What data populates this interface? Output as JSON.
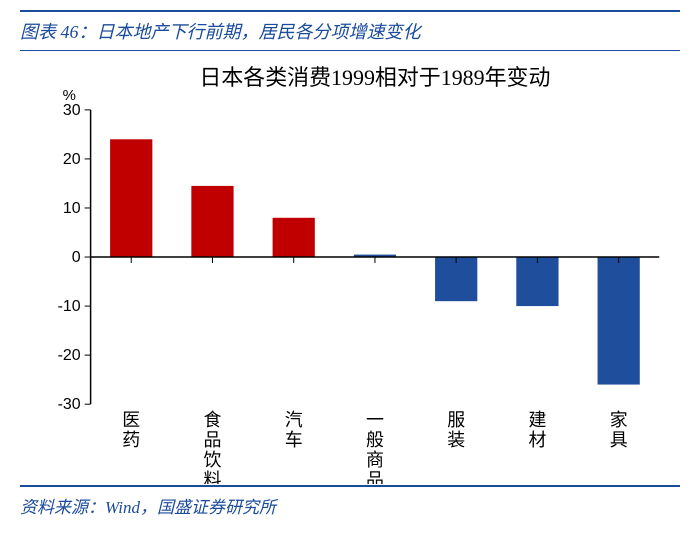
{
  "header": {
    "prefix": "图表 46：",
    "title": "日本地产下行前期，居民各分项增速变化"
  },
  "footer": {
    "prefix": "资料来源：",
    "source": "Wind，国盛证券研究所"
  },
  "chart": {
    "type": "bar",
    "title": "日本各类消费1999相对于1989年变动",
    "title_fontsize": 22,
    "ylabel": "%",
    "categories": [
      "医药",
      "食品饮料",
      "汽车",
      "一般商品",
      "服装",
      "建材",
      "家具"
    ],
    "values": [
      24,
      14.5,
      8,
      0.5,
      -9,
      -10,
      -26
    ],
    "bar_colors": [
      "#c00000",
      "#c00000",
      "#c00000",
      "#1f4e9c",
      "#1f4e9c",
      "#1f4e9c",
      "#1f4e9c"
    ],
    "ylim": [
      -30,
      30
    ],
    "ytick_step": 10,
    "tick_fontsize": 16,
    "cat_fontsize": 18,
    "axis_color": "#000000",
    "background_color": "#ffffff",
    "bar_width": 0.52,
    "header_rule_color": "#1a4b9c"
  }
}
